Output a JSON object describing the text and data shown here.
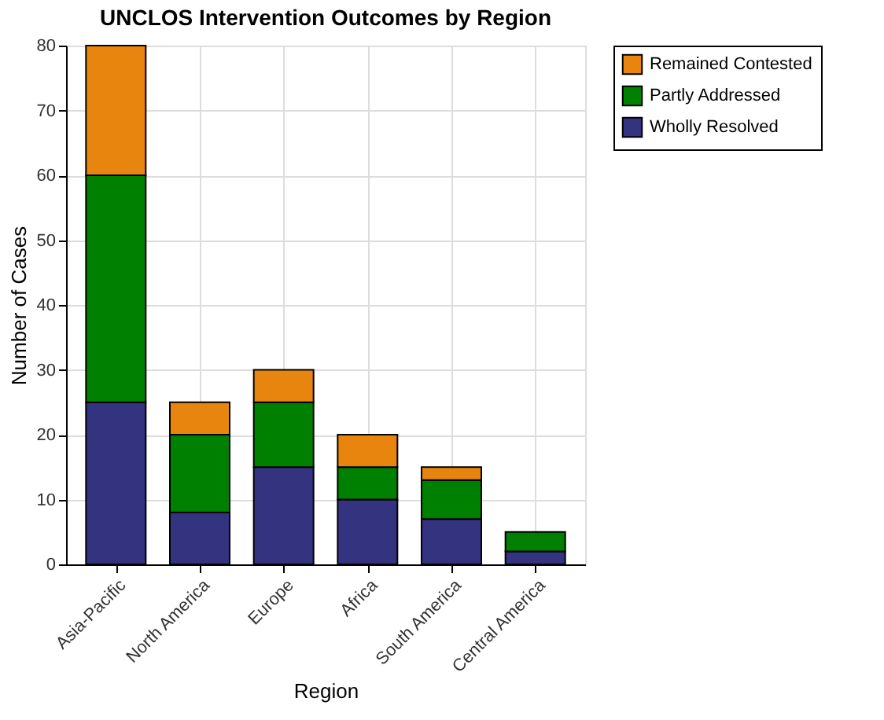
{
  "chart_data": {
    "type": "bar",
    "title": "UNCLOS Intervention Outcomes by Region",
    "xlabel": "Region",
    "ylabel": "Number of Cases",
    "categories": [
      "Asia-Pacific",
      "North America",
      "Europe",
      "Africa",
      "South America",
      "Central America"
    ],
    "stacked": true,
    "series": [
      {
        "name": "Wholly Resolved",
        "color": "#333380",
        "values": [
          25,
          8,
          15,
          10,
          7,
          2
        ]
      },
      {
        "name": "Partly Addressed",
        "color": "#008000",
        "values": [
          35,
          12,
          10,
          5,
          6,
          3
        ]
      },
      {
        "name": "Remained Contested",
        "color": "#e8850e",
        "values": [
          20,
          5,
          5,
          5,
          2,
          0
        ]
      }
    ],
    "ylim": [
      0,
      80
    ],
    "yticks": [
      0,
      10,
      20,
      30,
      40,
      50,
      60,
      70,
      80
    ],
    "grid": true,
    "legend": "top right"
  }
}
